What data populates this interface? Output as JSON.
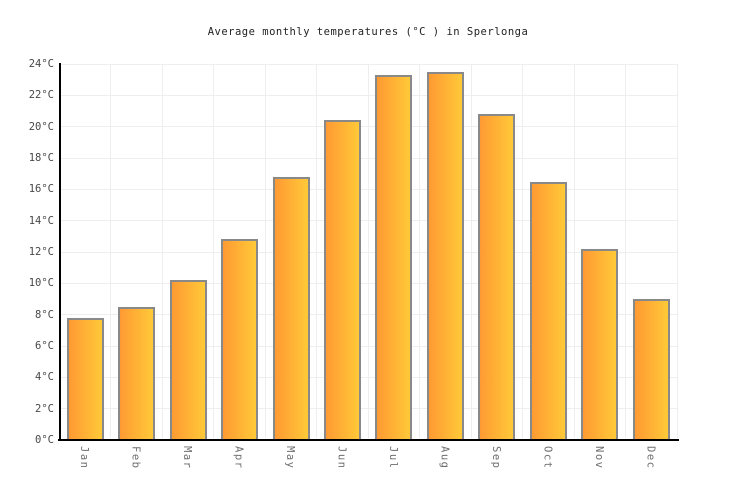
{
  "title": "Average monthly temperatures (°C ) in Sperlonga",
  "chart_data": {
    "type": "bar",
    "title": "Average monthly temperatures (°C ) in Sperlonga",
    "categories": [
      "Jan",
      "Feb",
      "Mar",
      "Apr",
      "May",
      "Jun",
      "Jul",
      "Aug",
      "Sep",
      "Oct",
      "Nov",
      "Dec"
    ],
    "values": [
      7.8,
      8.5,
      10.2,
      12.8,
      16.8,
      20.4,
      23.3,
      23.5,
      20.8,
      16.5,
      12.2,
      9.0
    ],
    "xlabel": "",
    "ylabel": "",
    "ylim": [
      0,
      24
    ],
    "y_tick_step": 2,
    "y_tick_labels": [
      "0°C",
      "2°C",
      "4°C",
      "6°C",
      "8°C",
      "10°C",
      "12°C",
      "14°C",
      "16°C",
      "18°C",
      "20°C",
      "22°C",
      "24°C"
    ],
    "grid": true,
    "legend": false,
    "colors": {
      "background": "#ffffff",
      "bar_gradient_left": "#ff9a33",
      "bar_gradient_right": "#ffc938",
      "bar_border": "#898989",
      "gridline": "#eeeeee",
      "axis": "#000000",
      "title_text": "#222222",
      "y_tick_text": "#484848",
      "x_tick_text": "#6e6e6e"
    }
  }
}
